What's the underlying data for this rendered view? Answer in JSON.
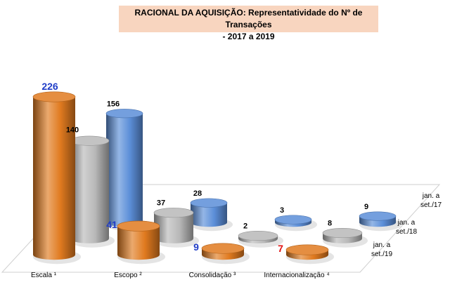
{
  "chart_data": {
    "type": "bar",
    "style": "3d-cylinder",
    "title": "RACIONAL DA AQUISIÇÃO:  Representatividade do Nº de Transações",
    "subtitle": "- 2017 a 2019",
    "categories": [
      "Escala ¹",
      "Escopo ²",
      "Consolidação ³",
      "Internacionalização ⁴"
    ],
    "series": [
      {
        "name": "jan. a set./19",
        "values": [
          226,
          41,
          9,
          7
        ],
        "color": "#e07a1f",
        "label_colors": [
          "#1f3cc7",
          "#1f3cc7",
          "#1f3cc7",
          "#e01010"
        ]
      },
      {
        "name": "jan. a set./18",
        "values": [
          140,
          37,
          2,
          8
        ],
        "color": "#b8b8b8",
        "label_colors": [
          "#000000",
          "#000000",
          "#000000",
          "#000000"
        ]
      },
      {
        "name": "jan. a set./17",
        "values": [
          156,
          28,
          3,
          9
        ],
        "color": "#5b8ed8",
        "label_colors": [
          "#000000",
          "#000000",
          "#000000",
          "#000000"
        ]
      }
    ],
    "depth_labels": [
      {
        "lines": [
          "jan. a",
          "set./17"
        ]
      },
      {
        "lines": [
          "jan. a",
          "set./18"
        ]
      },
      {
        "lines": [
          "jan. a",
          "set./19"
        ]
      }
    ],
    "ylim": [
      0,
      226
    ],
    "grid": false,
    "legend": "none"
  }
}
